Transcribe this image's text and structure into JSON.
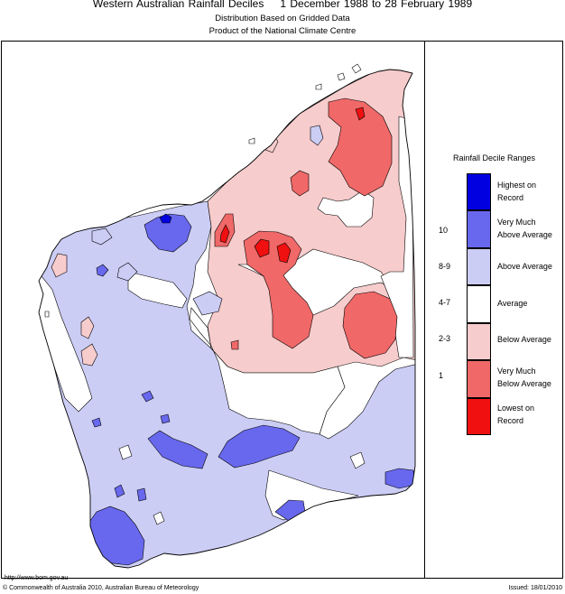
{
  "header": {
    "title_region": "Western Australian Rainfall Deciles",
    "title_period": "1 December 1988 to 28 February 1989",
    "subtitle1": "Distribution Based on Gridded Data",
    "subtitle2": "Product of the National Climate Centre"
  },
  "legend": {
    "title": "Rainfall Decile Ranges",
    "items": [
      {
        "code": "",
        "label1": "Highest on",
        "label2": "Record",
        "color": "#0000e0"
      },
      {
        "code": "10",
        "label1": "Very Much",
        "label2": "Above Average",
        "color": "#6868ee"
      },
      {
        "code": "8-9",
        "label1": "Above Average",
        "label2": "",
        "color": "#cccdf5"
      },
      {
        "code": "4-7",
        "label1": "Average",
        "label2": "",
        "color": "#ffffff"
      },
      {
        "code": "2-3",
        "label1": "Below Average",
        "label2": "",
        "color": "#f7cccc"
      },
      {
        "code": "1",
        "label1": "Very Much",
        "label2": "Below Average",
        "color": "#f06868"
      },
      {
        "code": "",
        "label1": "Lowest on",
        "label2": "Record",
        "color": "#f01010"
      }
    ]
  },
  "footer": {
    "url": "http://www.bom.gov.au",
    "copyright": "© Commonwealth of Australia 2010, Australian Bureau of Meteorology",
    "issued": "Issued: 18/01/2010"
  }
}
